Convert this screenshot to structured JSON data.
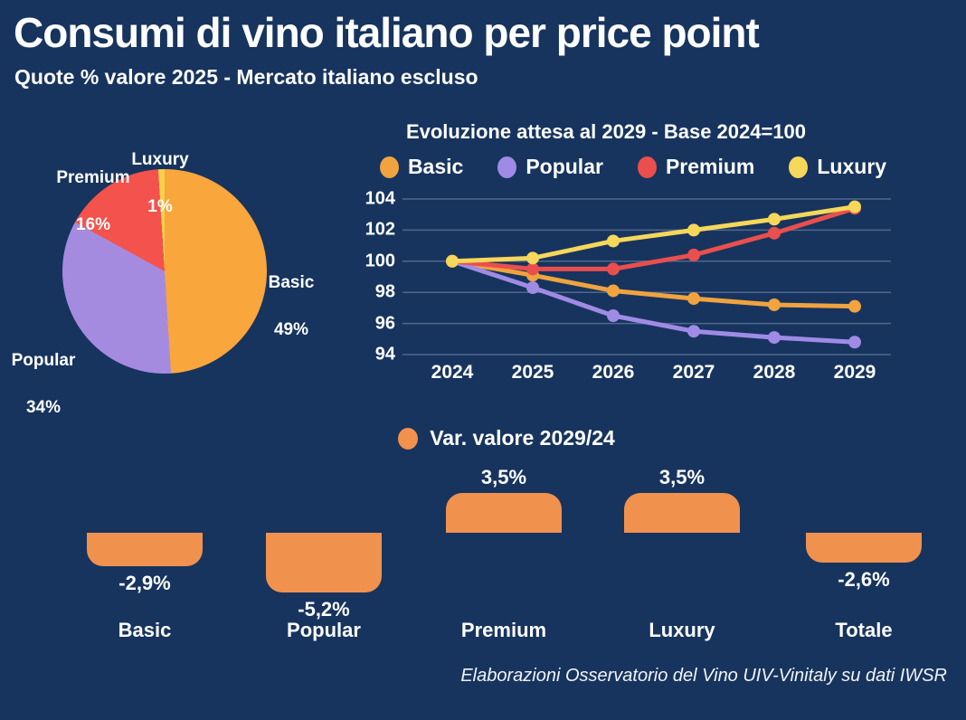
{
  "header": {
    "title": "Consumi di vino italiano per price point",
    "subtitle": "Quote % valore 2025 - Mercato italiano escluso"
  },
  "footer": {
    "source": "Elaborazioni Osservatorio del Vino UIV-Vinitaly su dati IWSR"
  },
  "colors": {
    "background": "#17345E",
    "text": "#FFFFFF",
    "grid": "rgba(210,224,250,0.30)"
  },
  "chart_data": [
    {
      "type": "pie",
      "title": "Quote % valore 2025 - Mercato italiano escluso",
      "labels": [
        "Basic",
        "Popular",
        "Premium",
        "Luxury"
      ],
      "values": [
        49,
        34,
        16,
        1
      ],
      "value_labels": [
        "49%",
        "34%",
        "16%",
        "1%"
      ],
      "colors": [
        "#F9A63D",
        "#A58BE0",
        "#F3524D",
        "#F6D149"
      ],
      "start_angle": "12-oclock",
      "direction": "clockwise"
    },
    {
      "type": "line",
      "title": "Evoluzione attesa al 2029 - Base 2024=100",
      "x": [
        2024,
        2025,
        2026,
        2027,
        2028,
        2029
      ],
      "series": [
        {
          "name": "Basic",
          "color": "#F0A33F",
          "values": [
            100,
            99.1,
            98.1,
            97.6,
            97.2,
            97.1
          ]
        },
        {
          "name": "Popular",
          "color": "#9F8BE6",
          "values": [
            100,
            98.3,
            96.5,
            95.5,
            95.1,
            94.8
          ]
        },
        {
          "name": "Premium",
          "color": "#EA4F4D",
          "values": [
            100,
            99.5,
            99.5,
            100.4,
            101.8,
            103.4
          ]
        },
        {
          "name": "Luxury",
          "color": "#F5D75A",
          "values": [
            100,
            100.2,
            101.3,
            102,
            102.7,
            103.5
          ]
        }
      ],
      "yticks": [
        94,
        96,
        98,
        100,
        102,
        104
      ],
      "ylim": [
        94,
        104
      ],
      "grid": true,
      "legend_position": "top"
    },
    {
      "type": "bar",
      "title": "Var. valore 2029/24",
      "categories": [
        "Basic",
        "Popular",
        "Premium",
        "Luxury",
        "Totale"
      ],
      "values": [
        -2.9,
        -5.2,
        3.5,
        3.5,
        -2.6
      ],
      "value_labels": [
        "-2,9%",
        "-5,2%",
        "3,5%",
        "3,5%",
        "-2,6%"
      ],
      "bar_color": "#F0914E"
    }
  ]
}
